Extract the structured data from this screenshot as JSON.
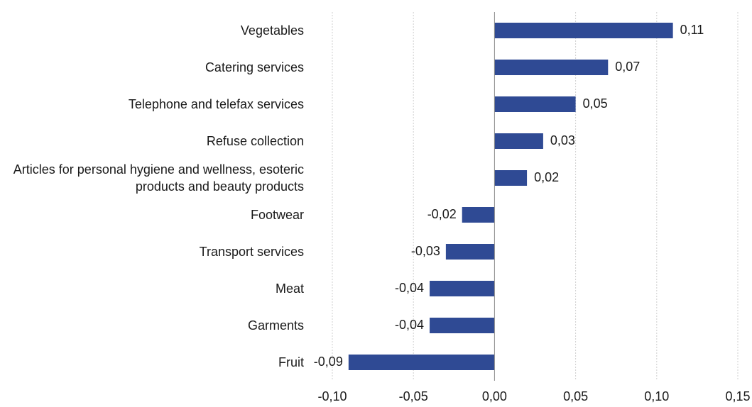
{
  "chart_data": {
    "type": "hbar",
    "categories": [
      "Vegetables",
      "Catering services",
      "Telephone and telefax services",
      "Refuse collection",
      "Articles for personal hygiene and wellness, esoteric products and beauty products",
      "Footwear",
      "Transport services",
      "Meat",
      "Garments",
      "Fruit"
    ],
    "values": [
      0.11,
      0.07,
      0.05,
      0.03,
      0.02,
      -0.02,
      -0.03,
      -0.04,
      -0.04,
      -0.09
    ],
    "value_labels": [
      "0,11",
      "0,07",
      "0,05",
      "0,03",
      "0,02",
      "-0,02",
      "-0,03",
      "-0,04",
      "-0,04",
      "-0,09"
    ],
    "color": "#2f4a94",
    "xlim": [
      -0.1,
      0.15
    ],
    "xticks": [
      {
        "value": -0.1,
        "label": "-0,10"
      },
      {
        "value": -0.05,
        "label": "-0,05"
      },
      {
        "value": 0,
        "label": "0,00"
      },
      {
        "value": 0.05,
        "label": "0,05"
      },
      {
        "value": 0.1,
        "label": "0,10"
      },
      {
        "value": 0.15,
        "label": "0,15"
      }
    ],
    "grid": true
  }
}
